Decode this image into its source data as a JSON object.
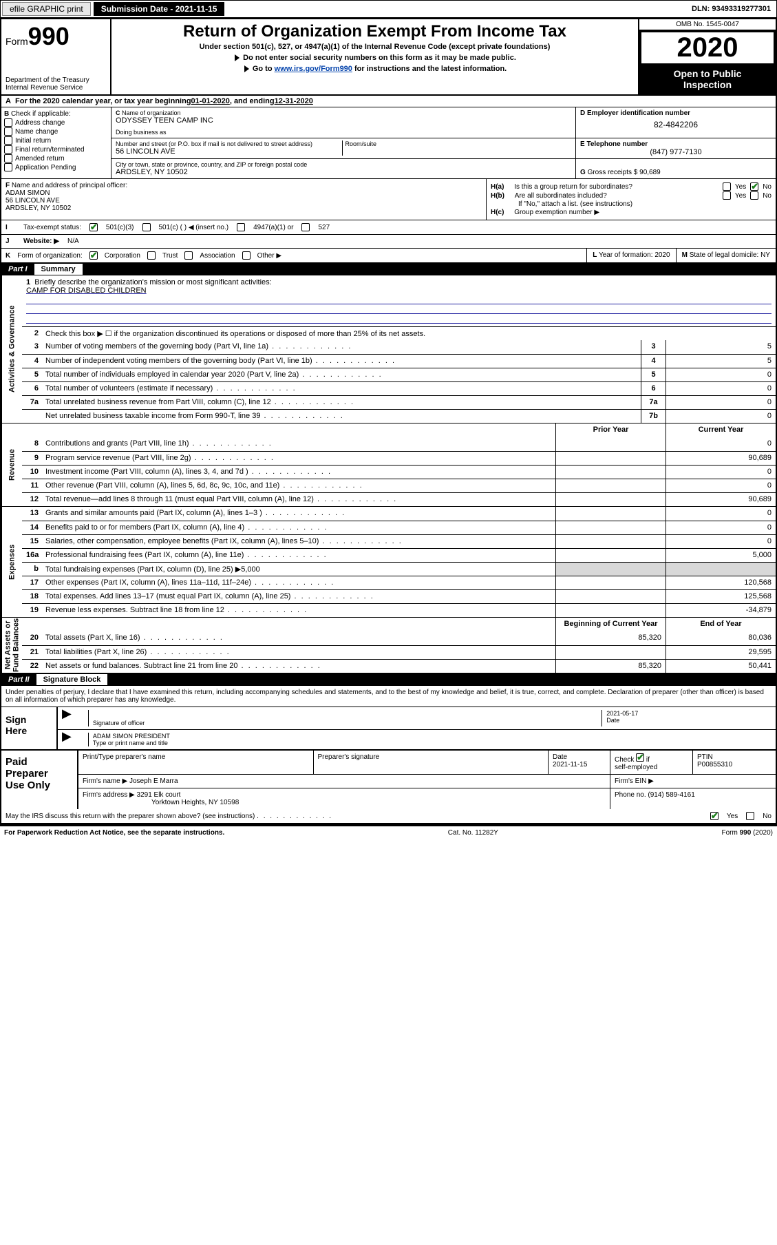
{
  "topbar": {
    "efile": "efile GRAPHIC print",
    "subdate_label": "Submission Date - ",
    "subdate": "2021-11-15",
    "dln": "DLN: 93493319277301"
  },
  "header": {
    "form_small": "Form",
    "form_big": "990",
    "dept": "Department of the Treasury\nInternal Revenue Service",
    "title": "Return of Organization Exempt From Income Tax",
    "sub": "Under section 501(c), 527, or 4947(a)(1) of the Internal Revenue Code (except private foundations)",
    "inst1": "Do not enter social security numbers on this form as it may be made public.",
    "inst2_pre": "Go to ",
    "inst2_link": "www.irs.gov/Form990",
    "inst2_post": " for instructions and the latest information.",
    "omb": "OMB No. 1545-0047",
    "year": "2020",
    "open_pub": "Open to Public\nInspection"
  },
  "period": {
    "label": "For the 2020 calendar year, or tax year beginning ",
    "start": "01-01-2020",
    "mid": " , and ending ",
    "end": "12-31-2020"
  },
  "B": {
    "label": "Check if applicable:",
    "items": [
      "Address change",
      "Name change",
      "Initial return",
      "Final return/terminated",
      "Amended return",
      "Application Pending"
    ]
  },
  "C": {
    "name_label": "Name of organization",
    "name": "ODYSSEY TEEN CAMP INC",
    "dba_label": "Doing business as",
    "addr_label": "Number and street (or P.O. box if mail is not delivered to street address)",
    "room_label": "Room/suite",
    "addr": "56 LINCOLN AVE",
    "city_label": "City or town, state or province, country, and ZIP or foreign postal code",
    "city": "ARDSLEY, NY  10502"
  },
  "D": {
    "label": "Employer identification number",
    "val": "82-4842206"
  },
  "E": {
    "label": "Telephone number",
    "val": "(847) 977-7130"
  },
  "G": {
    "label": "Gross receipts $",
    "val": "90,689"
  },
  "F": {
    "label": "Name and address of principal officer:",
    "name": "ADAM SIMON",
    "addr1": "56 LINCOLN AVE",
    "addr2": "ARDSLEY, NY  10502"
  },
  "H": {
    "a": "Is this a group return for subordinates?",
    "b": "Are all subordinates included?",
    "b_note": "If \"No,\" attach a list. (see instructions)",
    "c": "Group exemption number ▶",
    "yes": "Yes",
    "no": "No"
  },
  "I": {
    "label": "Tax-exempt status:",
    "opts": [
      "501(c)(3)",
      "501(c) (  ) ◀ (insert no.)",
      "4947(a)(1) or",
      "527"
    ]
  },
  "J": {
    "label": "Website: ▶",
    "val": "N/A"
  },
  "K": {
    "label": "Form of organization:",
    "opts": [
      "Corporation",
      "Trust",
      "Association",
      "Other ▶"
    ]
  },
  "L": {
    "label": "Year of formation:",
    "val": "2020"
  },
  "M": {
    "label": "State of legal domicile:",
    "val": "NY"
  },
  "part1": {
    "tab": "Part I",
    "title": "Summary"
  },
  "summary": {
    "side_labels": [
      "Activities & Governance",
      "Revenue",
      "Expenses",
      "Net Assets or\nFund Balances"
    ],
    "brief_label": "Briefly describe the organization's mission or most significant activities:",
    "mission": "CAMP FOR DISABLED CHILDREN",
    "line2": "Check this box ▶ ☐  if the organization discontinued its operations or disposed of more than 25% of its net assets.",
    "hdr_prior": "Prior Year",
    "hdr_curr": "Current Year",
    "hdr_boy": "Beginning of Current Year",
    "hdr_eoy": "End of Year",
    "lines_gov": [
      {
        "n": "3",
        "d": "Number of voting members of the governing body (Part VI, line 1a)",
        "box": "3",
        "v": "5"
      },
      {
        "n": "4",
        "d": "Number of independent voting members of the governing body (Part VI, line 1b)",
        "box": "4",
        "v": "5"
      },
      {
        "n": "5",
        "d": "Total number of individuals employed in calendar year 2020 (Part V, line 2a)",
        "box": "5",
        "v": "0"
      },
      {
        "n": "6",
        "d": "Total number of volunteers (estimate if necessary)",
        "box": "6",
        "v": "0"
      },
      {
        "n": "7a",
        "d": "Total unrelated business revenue from Part VIII, column (C), line 12",
        "box": "7a",
        "v": "0"
      },
      {
        "n": "",
        "d": "Net unrelated business taxable income from Form 990-T, line 39",
        "box": "7b",
        "v": "0"
      }
    ],
    "lines_rev": [
      {
        "n": "8",
        "d": "Contributions and grants (Part VIII, line 1h)",
        "p": "",
        "c": "0"
      },
      {
        "n": "9",
        "d": "Program service revenue (Part VIII, line 2g)",
        "p": "",
        "c": "90,689"
      },
      {
        "n": "10",
        "d": "Investment income (Part VIII, column (A), lines 3, 4, and 7d )",
        "p": "",
        "c": "0"
      },
      {
        "n": "11",
        "d": "Other revenue (Part VIII, column (A), lines 5, 6d, 8c, 9c, 10c, and 11e)",
        "p": "",
        "c": "0"
      },
      {
        "n": "12",
        "d": "Total revenue—add lines 8 through 11 (must equal Part VIII, column (A), line 12)",
        "p": "",
        "c": "90,689"
      }
    ],
    "lines_exp": [
      {
        "n": "13",
        "d": "Grants and similar amounts paid (Part IX, column (A), lines 1–3 )",
        "p": "",
        "c": "0"
      },
      {
        "n": "14",
        "d": "Benefits paid to or for members (Part IX, column (A), line 4)",
        "p": "",
        "c": "0"
      },
      {
        "n": "15",
        "d": "Salaries, other compensation, employee benefits (Part IX, column (A), lines 5–10)",
        "p": "",
        "c": "0"
      },
      {
        "n": "16a",
        "d": "Professional fundraising fees (Part IX, column (A), line 11e)",
        "p": "",
        "c": "5,000"
      },
      {
        "n": "b",
        "d": "Total fundraising expenses (Part IX, column (D), line 25) ▶5,000",
        "p": "shade",
        "c": "shade"
      },
      {
        "n": "17",
        "d": "Other expenses (Part IX, column (A), lines 11a–11d, 11f–24e)",
        "p": "",
        "c": "120,568"
      },
      {
        "n": "18",
        "d": "Total expenses. Add lines 13–17 (must equal Part IX, column (A), line 25)",
        "p": "",
        "c": "125,568"
      },
      {
        "n": "19",
        "d": "Revenue less expenses. Subtract line 18 from line 12",
        "p": "",
        "c": "-34,879"
      }
    ],
    "lines_net": [
      {
        "n": "20",
        "d": "Total assets (Part X, line 16)",
        "p": "85,320",
        "c": "80,036"
      },
      {
        "n": "21",
        "d": "Total liabilities (Part X, line 26)",
        "p": "",
        "c": "29,595"
      },
      {
        "n": "22",
        "d": "Net assets or fund balances. Subtract line 21 from line 20",
        "p": "85,320",
        "c": "50,441"
      }
    ]
  },
  "part2": {
    "tab": "Part II",
    "title": "Signature Block",
    "decl": "Under penalties of perjury, I declare that I have examined this return, including accompanying schedules and statements, and to the best of my knowledge and belief, it is true, correct, and complete. Declaration of preparer (other than officer) is based on all information of which preparer has any knowledge."
  },
  "sign": {
    "left": "Sign\nHere",
    "sig_label": "Signature of officer",
    "date_label": "Date",
    "date": "2021-05-17",
    "name": "ADAM SIMON  PRESIDENT",
    "name_label": "Type or print name and title"
  },
  "prep": {
    "left": "Paid\nPreparer\nUse Only",
    "h1": "Print/Type preparer's name",
    "h2": "Preparer's signature",
    "h3": "Date",
    "date": "2021-11-15",
    "h4": "Check ☑ if self-employed",
    "h5": "PTIN",
    "ptin": "P00855310",
    "firm_name_l": "Firm's name    ▶",
    "firm_name": "Joseph E Marra",
    "firm_ein_l": "Firm's EIN ▶",
    "firm_addr_l": "Firm's address ▶",
    "firm_addr1": "3291 Elk court",
    "firm_addr2": "Yorktown Heights, NY  10598",
    "phone_l": "Phone no.",
    "phone": "(914) 589-4161"
  },
  "discuss": {
    "q": "May the IRS discuss this return with the preparer shown above? (see instructions)",
    "yes": "Yes",
    "no": "No"
  },
  "footer": {
    "left": "For Paperwork Reduction Act Notice, see the separate instructions.",
    "mid": "Cat. No. 11282Y",
    "right": "Form 990 (2020)"
  }
}
